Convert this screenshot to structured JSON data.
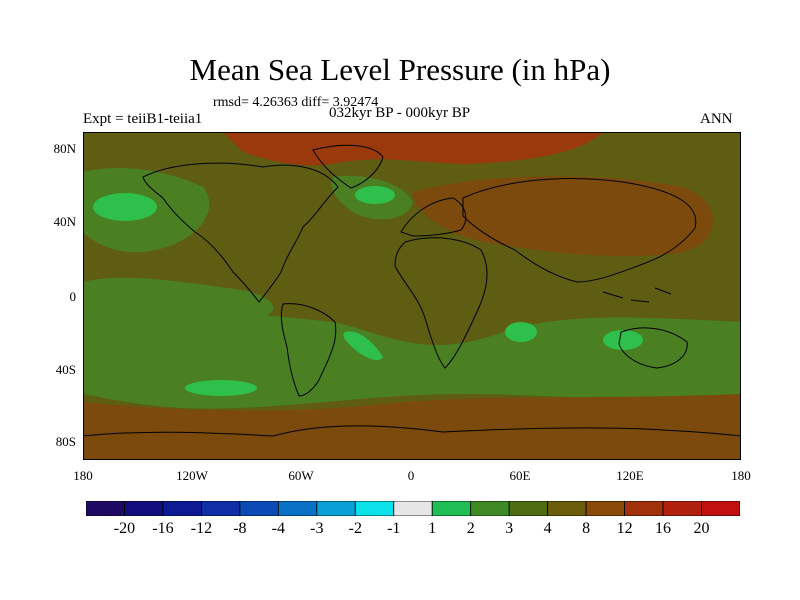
{
  "title": "Mean Sea Level Pressure (in hPa)",
  "stats_text": "rmsd= 4.26363 diff= 3.92474",
  "left_label": "Expt = teiiB1-teiia1",
  "center_label": "032kyr BP - 000kyr BP",
  "right_label": "ANN",
  "y_axis_labels": [
    "80N",
    "40N",
    "0",
    "40S",
    "80S"
  ],
  "x_axis_labels": [
    "180",
    "120W",
    "60W",
    "0",
    "60E",
    "120E",
    "180"
  ],
  "colorbar": {
    "colors": [
      "#1f0a63",
      "#130c7c",
      "#0d1a94",
      "#0e2fa6",
      "#0a4bb5",
      "#0a72c6",
      "#08a0d6",
      "#0ce0e8",
      "#e6e6e6",
      "#1fbf55",
      "#3f8a25",
      "#4e6d12",
      "#6a5c0a",
      "#8a4a0a",
      "#a0310a",
      "#b0200c",
      "#c01010"
    ],
    "labels": [
      "-20",
      "-16",
      "-12",
      "-8",
      "-4",
      "-3",
      "-2",
      "-1",
      "1",
      "2",
      "3",
      "4",
      "8",
      "12",
      "16",
      "20"
    ]
  },
  "map_colors": {
    "base": "#5e5d12",
    "green": "#4a7f22",
    "bright_green": "#2fbf4c",
    "brown": "#7b4a0c",
    "red_brown": "#9a3a0c",
    "coast": "#000000"
  }
}
